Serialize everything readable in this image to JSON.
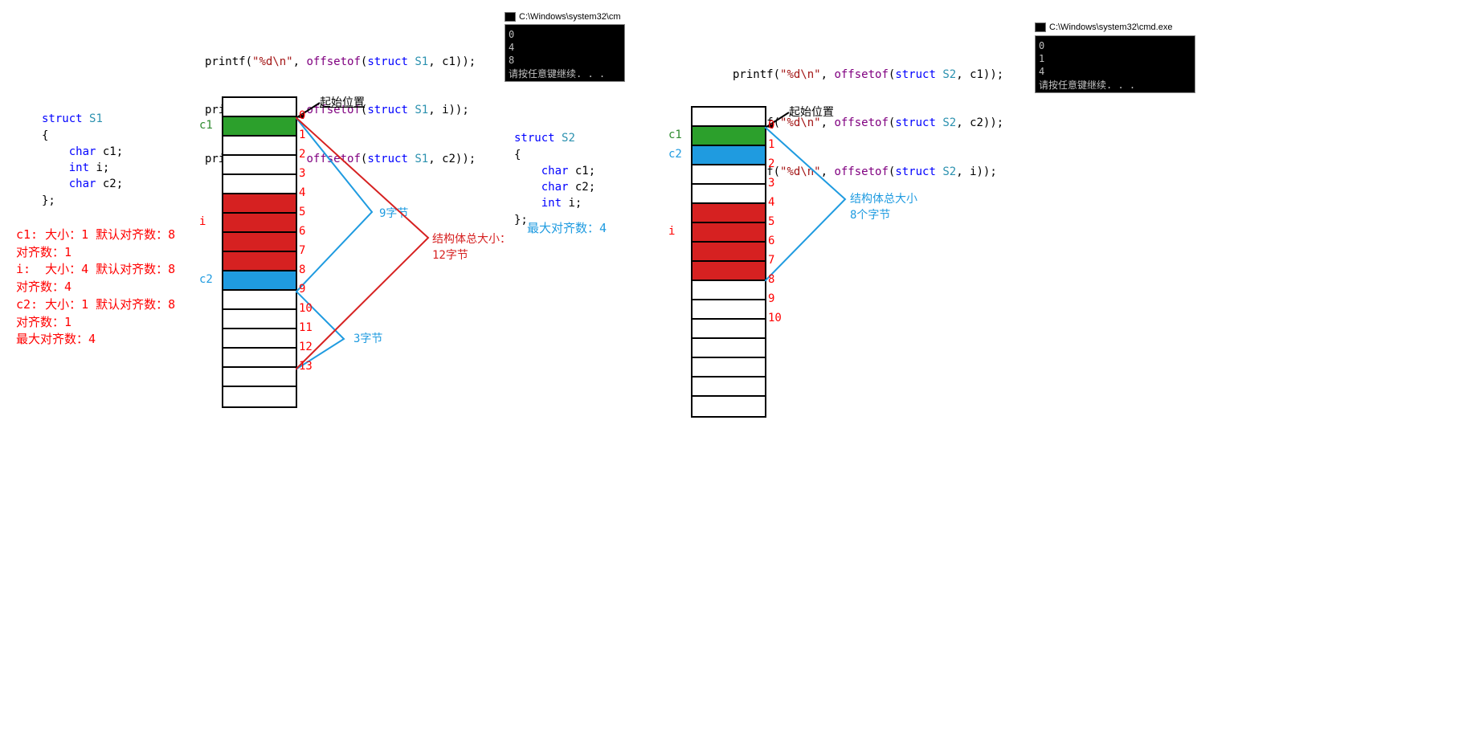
{
  "colors": {
    "green": "#2ca02c",
    "red": "#d62121",
    "blue": "#1f9be0",
    "black": "#000000",
    "textRed": "#ff0000",
    "textBlue": "#1f9be0",
    "textGreen": "#2e8b2e",
    "textPurple": "#800080",
    "textStr": "#a31515"
  },
  "left": {
    "printf": {
      "lines": [
        {
          "fmt": "\"%d\\n\"",
          "fn": "offsetof",
          "struct": "struct",
          "type": "S1",
          "member": "c1"
        },
        {
          "fmt": "\"%d\\n\"",
          "fn": "offsetof",
          "struct": "struct",
          "type": "S1",
          "member": "i"
        },
        {
          "fmt": "\"%d\\n\"",
          "fn": "offsetof",
          "struct": "struct",
          "type": "S1",
          "member": "c2"
        }
      ]
    },
    "console": {
      "title": "C:\\Windows\\system32\\cm",
      "lines": [
        "0",
        "4",
        "8",
        "请按任意键继续. . ."
      ]
    },
    "struct_code": {
      "header": {
        "kw": "struct",
        "name": "S1"
      },
      "members": [
        {
          "type": "char",
          "name": "c1;"
        },
        {
          "type": "int",
          "name": "i;"
        },
        {
          "type": "char",
          "name": "c2;"
        }
      ],
      "close": "};"
    },
    "analysis": [
      "c1: 大小：1 默认对齐数：8",
      "对齐数：1",
      "i:  大小：4 默认对齐数：8",
      "对齐数：4",
      "c2: 大小：1 默认对齐数：8",
      "对齐数：1",
      "最大对齐数：4"
    ],
    "memory": {
      "num_cells": 16,
      "cell_colors": {
        "0": "white",
        "1": "green",
        "2": "white",
        "3": "white",
        "4": "white",
        "5": "red",
        "6": "red",
        "7": "red",
        "8": "red",
        "9": "blue",
        "10": "white",
        "11": "white",
        "12": "white",
        "13": "white",
        "14": "white",
        "15": "white"
      },
      "offsets": [
        "0",
        "1",
        "2",
        "3",
        "4",
        "5",
        "6",
        "7",
        "8",
        "9",
        "10",
        "11",
        "12",
        "13"
      ],
      "field_labels": [
        {
          "text": "c1",
          "row": 1,
          "color": "green"
        },
        {
          "text": "i",
          "row": 6,
          "color": "red"
        },
        {
          "text": "c2",
          "row": 9,
          "color": "blue"
        }
      ],
      "start_label": "起始位置"
    },
    "braces": [
      {
        "text": "9字节",
        "color": "blue"
      },
      {
        "text": "3字节",
        "color": "blue"
      },
      {
        "text": "结构体总大小：\n12字节",
        "color": "red"
      }
    ]
  },
  "right": {
    "printf": {
      "lines": [
        {
          "fmt": "\"%d\\n\"",
          "fn": "offsetof",
          "struct": "struct",
          "type": "S2",
          "member": "c1"
        },
        {
          "fmt": "\"%d\\n\"",
          "fn": "offsetof",
          "struct": "struct",
          "type": "S2",
          "member": "c2"
        },
        {
          "fmt": "\"%d\\n\"",
          "fn": "offsetof",
          "struct": "struct",
          "type": "S2",
          "member": "i"
        }
      ]
    },
    "console": {
      "title": "C:\\Windows\\system32\\cmd.exe",
      "lines": [
        "0",
        "1",
        "4",
        "请按任意键继续. . ."
      ]
    },
    "struct_code": {
      "header": {
        "kw": "struct",
        "name": "S2"
      },
      "members": [
        {
          "type": "char",
          "name": "c1;"
        },
        {
          "type": "char",
          "name": "c2;"
        },
        {
          "type": "int",
          "name": "i;"
        }
      ],
      "close": "};"
    },
    "analysis": [
      "最大对齐数：4"
    ],
    "memory": {
      "num_cells": 16,
      "cell_colors": {
        "0": "white",
        "1": "green",
        "2": "blue",
        "3": "white",
        "4": "white",
        "5": "red",
        "6": "red",
        "7": "red",
        "8": "red",
        "9": "white",
        "10": "white",
        "11": "white",
        "12": "white",
        "13": "white",
        "14": "white",
        "15": "white"
      },
      "offsets": [
        "0",
        "1",
        "2",
        "3",
        "4",
        "5",
        "6",
        "7",
        "8",
        "9",
        "10"
      ],
      "field_labels": [
        {
          "text": "c1",
          "row": 1,
          "color": "green"
        },
        {
          "text": "c2",
          "row": 2,
          "color": "blue"
        },
        {
          "text": "i",
          "row": 6,
          "color": "red"
        }
      ],
      "start_label": "起始位置"
    },
    "braces": [
      {
        "text": "结构体总大小\n8个字节",
        "color": "blue"
      }
    ]
  }
}
